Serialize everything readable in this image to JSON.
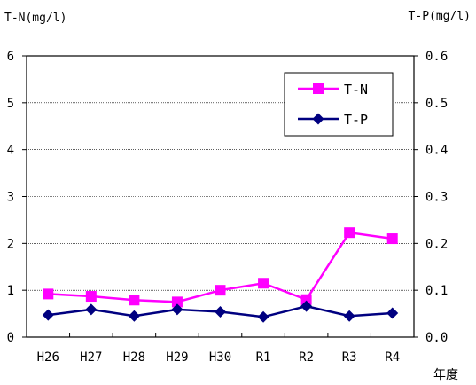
{
  "chart_data": {
    "type": "line",
    "categories": [
      "H26",
      "H27",
      "H28",
      "H29",
      "H30",
      "R1",
      "R2",
      "R3",
      "R4"
    ],
    "xlabel": "年度",
    "y_left": {
      "label": "T-N(mg/l)",
      "range": [
        0,
        6
      ],
      "ticks": [
        "0",
        "1",
        "2",
        "3",
        "4",
        "5",
        "6"
      ]
    },
    "y_right": {
      "label": "T-P(mg/l)",
      "range": [
        0,
        0.6
      ],
      "ticks": [
        "0.0",
        "0.1",
        "0.2",
        "0.3",
        "0.4",
        "0.5",
        "0.6"
      ]
    },
    "grid": "horizontal",
    "legend_position": "top-right",
    "series": [
      {
        "name": "T-N",
        "axis": "left",
        "color": "#ff00ff",
        "marker": "square",
        "values": [
          0.92,
          0.87,
          0.79,
          0.75,
          1.0,
          1.15,
          0.8,
          2.23,
          2.1
        ]
      },
      {
        "name": "T-P",
        "axis": "right",
        "color": "#000080",
        "marker": "diamond",
        "values": [
          0.047,
          0.059,
          0.045,
          0.059,
          0.054,
          0.043,
          0.066,
          0.045,
          0.051
        ]
      }
    ]
  }
}
